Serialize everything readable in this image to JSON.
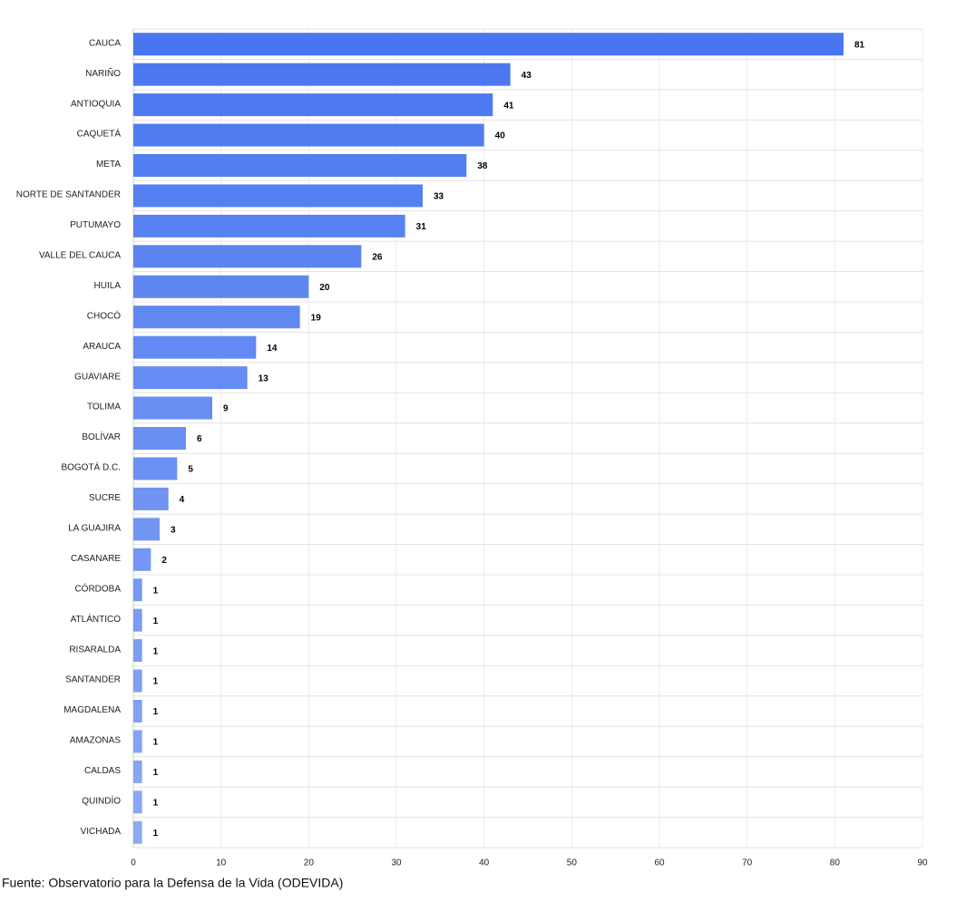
{
  "chart_data": {
    "type": "hbar",
    "categories": [
      "CAUCA",
      "NARIÑO",
      "ANTIOQUIA",
      "CAQUETÁ",
      "META",
      "NORTE DE SANTANDER",
      "PUTUMAYO",
      "VALLE DEL CAUCA",
      "HUILA",
      "CHOCÓ",
      "ARAUCA",
      "GUAVIARE",
      "TOLIMA",
      "BOLÍVAR",
      "BOGOTÁ D.C.",
      "SUCRE",
      "LA GUAJIRA",
      "CASANARE",
      "CÓRDOBA",
      "ATLÁNTICO",
      "RISARALDA",
      "SANTANDER",
      "MAGDALENA",
      "AMAZONAS",
      "CALDAS",
      "QUINDÍO",
      "VICHADA"
    ],
    "values": [
      81,
      43,
      41,
      40,
      38,
      33,
      31,
      26,
      20,
      19,
      14,
      13,
      9,
      6,
      5,
      4,
      3,
      2,
      1,
      1,
      1,
      1,
      1,
      1,
      1,
      1,
      1
    ],
    "colors": [
      "#4876f0",
      "#4b78f0",
      "#4d7af0",
      "#507cf0",
      "#537ef1",
      "#5580f1",
      "#5882f1",
      "#5b84f1",
      "#5d86f1",
      "#6088f1",
      "#628af2",
      "#658cf2",
      "#688ef2",
      "#6a8ff2",
      "#6d91f2",
      "#7093f2",
      "#7295f2",
      "#7597f3",
      "#7899f3",
      "#7a9bf3",
      "#7d9df3",
      "#809ff3",
      "#82a1f3",
      "#85a3f4",
      "#88a5f4",
      "#8aa7f4",
      "#8da9f4"
    ],
    "xlim": [
      0,
      90
    ],
    "xticks": [
      0,
      10,
      20,
      30,
      40,
      50,
      60,
      70,
      80,
      90
    ],
    "grid": true,
    "source": "Fuente: Observatorio para la Defensa de la Vida (ODEVIDA)"
  }
}
